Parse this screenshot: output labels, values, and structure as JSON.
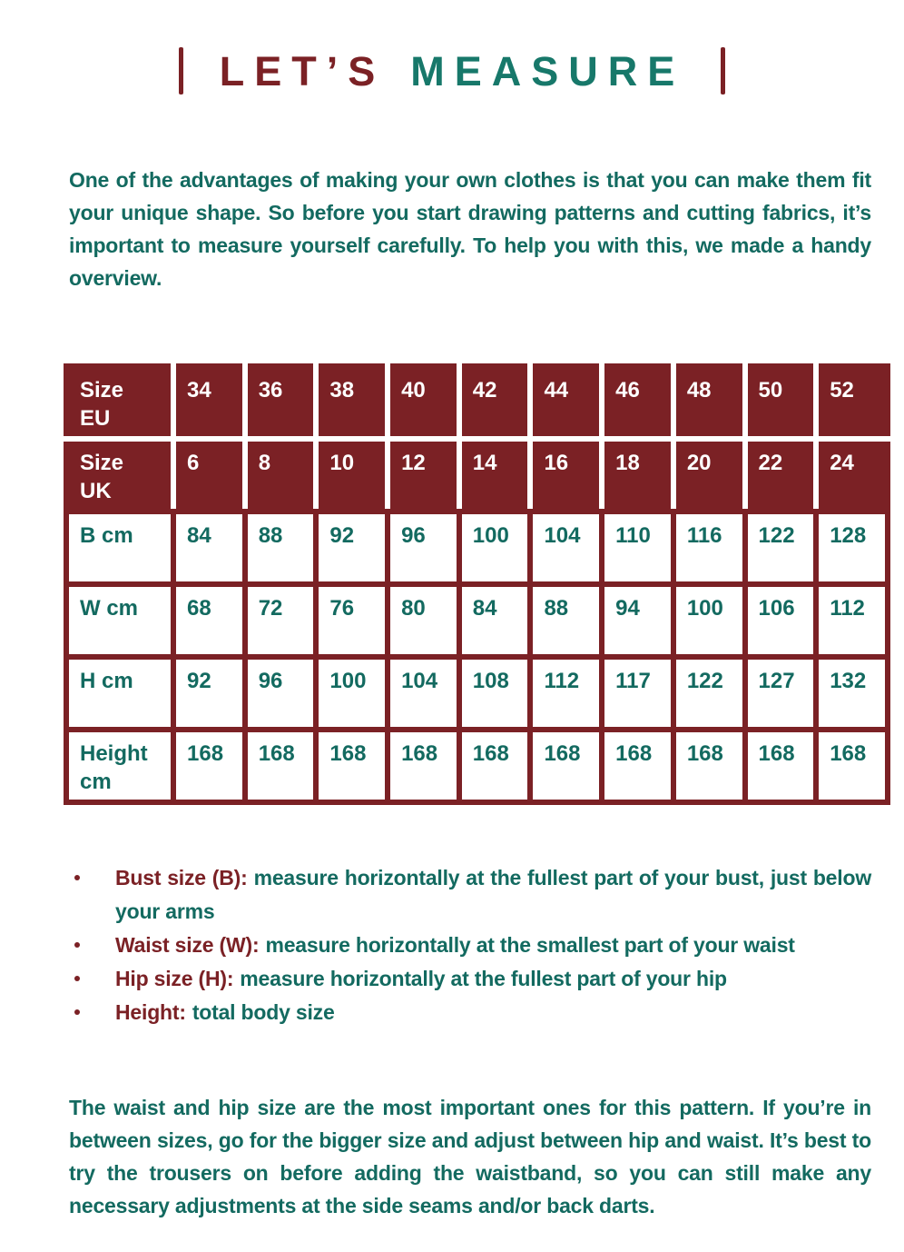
{
  "title": {
    "word_red": "LET’S",
    "word_green": "MEASURE"
  },
  "intro": "One of the advantages of making your own clothes is that you can make them fit your unique shape. So before you start drawing patterns and cutting fabrics, it’s important to measure yourself carefully. To help you with this, we made a handy overview.",
  "size_table": {
    "rows": [
      {
        "label_line1": "Size",
        "label_line2": "EU",
        "cells": [
          "34",
          "36",
          "38",
          "40",
          "42",
          "44",
          "46",
          "48",
          "50",
          "52"
        ]
      },
      {
        "label_line1": "Size",
        "label_line2": "UK",
        "cells": [
          "6",
          "8",
          "10",
          "12",
          "14",
          "16",
          "18",
          "20",
          "22",
          "24"
        ]
      },
      {
        "label_line1": "B cm",
        "label_line2": "",
        "cells": [
          "84",
          "88",
          "92",
          "96",
          "100",
          "104",
          "110",
          "116",
          "122",
          "128"
        ]
      },
      {
        "label_line1": "W cm",
        "label_line2": "",
        "cells": [
          "68",
          "72",
          "76",
          "80",
          "84",
          "88",
          "94",
          "100",
          "106",
          "112"
        ]
      },
      {
        "label_line1": "H cm",
        "label_line2": "",
        "cells": [
          "92",
          "96",
          "100",
          "104",
          "108",
          "112",
          "117",
          "122",
          "127",
          "132"
        ]
      },
      {
        "label_line1": "Height",
        "label_line2": "cm",
        "cells": [
          "168",
          "168",
          "168",
          "168",
          "168",
          "168",
          "168",
          "168",
          "168",
          "168"
        ]
      }
    ]
  },
  "bullets": [
    {
      "lead": "Bust size (B):",
      "rest": "measure horizontally at the fullest part of your bust, just below your arms"
    },
    {
      "lead": "Waist size (W):",
      "rest": "measure horizontally at the smallest part of your waist"
    },
    {
      "lead": "Hip size (H):",
      "rest": "measure horizontally at the fullest part of your hip"
    },
    {
      "lead": "Height:",
      "rest": "total body size"
    }
  ],
  "closing": "The waist and hip size are the most important ones for this pattern. If you’re in between sizes, go for the bigger size and adjust between hip and waist. It’s best to try the trousers on before adding the waistband, so you can still make any necessary adjustments at the side seams and/or back darts.",
  "colors": {
    "maroon": "#7b2125",
    "teal": "#136a60",
    "title_green": "#17786a",
    "header_text": "#ffffff"
  }
}
